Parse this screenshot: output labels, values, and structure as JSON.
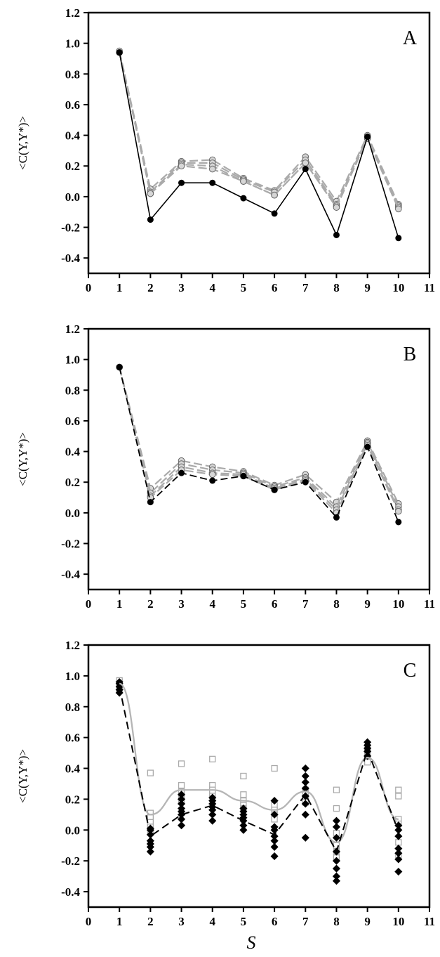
{
  "figure": {
    "xlabel": "S"
  },
  "chart_data": [
    {
      "type": "line",
      "panel_label": "A",
      "ylabel": "<C(Y,Y*)>",
      "xlim": [
        0,
        11
      ],
      "ylim": [
        -0.5,
        1.2
      ],
      "xticks": [
        "0",
        "1",
        "2",
        "3",
        "4",
        "5",
        "6",
        "7",
        "8",
        "9",
        "10",
        "11"
      ],
      "yticks": [
        "-0.4",
        "-0.2",
        "0.0",
        "0.2",
        "0.4",
        "0.6",
        "0.8",
        "1.0",
        "1.2"
      ],
      "x": [
        1,
        2,
        3,
        4,
        5,
        6,
        7,
        8,
        9,
        10
      ],
      "series": [
        {
          "style": "black-solid",
          "values": [
            0.94,
            -0.15,
            0.09,
            0.09,
            -0.01,
            -0.11,
            0.18,
            -0.25,
            0.39,
            -0.27
          ]
        },
        {
          "style": "gray-dashed",
          "values": [
            0.95,
            0.05,
            0.23,
            0.24,
            0.12,
            0.04,
            0.26,
            -0.03,
            0.4,
            -0.05
          ]
        },
        {
          "style": "gray-dashed",
          "values": [
            0.94,
            0.03,
            0.22,
            0.22,
            0.11,
            0.03,
            0.24,
            -0.05,
            0.39,
            -0.06
          ]
        },
        {
          "style": "gray-dashed",
          "values": [
            0.94,
            0.02,
            0.21,
            0.2,
            0.1,
            0.01,
            0.22,
            -0.06,
            0.38,
            -0.07
          ]
        },
        {
          "style": "gray-dashed",
          "values": [
            0.94,
            0.02,
            0.2,
            0.18,
            0.1,
            0.01,
            0.22,
            -0.07,
            0.38,
            -0.08
          ]
        }
      ]
    },
    {
      "type": "line",
      "panel_label": "B",
      "ylabel": "<C(Y,Y*)>",
      "xlim": [
        0,
        11
      ],
      "ylim": [
        -0.5,
        1.2
      ],
      "xticks": [
        "0",
        "1",
        "2",
        "3",
        "4",
        "5",
        "6",
        "7",
        "8",
        "9",
        "10",
        "11"
      ],
      "yticks": [
        "-0.4",
        "-0.2",
        "0.0",
        "0.2",
        "0.4",
        "0.6",
        "0.8",
        "1.0",
        "1.2"
      ],
      "x": [
        1,
        2,
        3,
        4,
        5,
        6,
        7,
        8,
        9,
        10
      ],
      "series": [
        {
          "style": "black-dashed",
          "values": [
            0.95,
            0.07,
            0.26,
            0.21,
            0.24,
            0.15,
            0.2,
            -0.03,
            0.43,
            -0.06
          ]
        },
        {
          "style": "gray-dashed",
          "values": [
            0.95,
            0.16,
            0.34,
            0.3,
            0.27,
            0.18,
            0.25,
            0.07,
            0.47,
            0.06
          ]
        },
        {
          "style": "gray-dashed",
          "values": [
            0.95,
            0.13,
            0.32,
            0.28,
            0.26,
            0.17,
            0.23,
            0.04,
            0.46,
            0.04
          ]
        },
        {
          "style": "gray-dashed",
          "values": [
            0.95,
            0.11,
            0.3,
            0.26,
            0.25,
            0.16,
            0.22,
            0.02,
            0.45,
            0.02
          ]
        },
        {
          "style": "gray-dashed",
          "values": [
            0.95,
            0.1,
            0.28,
            0.25,
            0.24,
            0.15,
            0.21,
            0.0,
            0.44,
            0.01
          ]
        }
      ]
    },
    {
      "type": "scatter",
      "panel_label": "C",
      "ylabel": "<C(Y,Y*)>",
      "xlim": [
        0,
        11
      ],
      "ylim": [
        -0.5,
        1.2
      ],
      "xticks": [
        "0",
        "1",
        "2",
        "3",
        "4",
        "5",
        "6",
        "7",
        "8",
        "9",
        "10",
        "11"
      ],
      "yticks": [
        "-0.4",
        "-0.2",
        "0.0",
        "0.2",
        "0.4",
        "0.6",
        "0.8",
        "1.0",
        "1.2"
      ],
      "x": [
        1,
        2,
        3,
        4,
        5,
        6,
        7,
        8,
        9,
        10
      ],
      "mean_black_dashed": [
        0.93,
        -0.04,
        0.1,
        0.16,
        0.06,
        -0.03,
        0.23,
        -0.14,
        0.52,
        -0.01
      ],
      "mean_gray_solid": [
        0.95,
        0.1,
        0.26,
        0.26,
        0.19,
        0.13,
        0.25,
        -0.08,
        0.47,
        0.07
      ],
      "black_diamonds": [
        [
          0.89,
          0.91,
          0.93,
          0.95,
          0.96
        ],
        [
          -0.14,
          -0.11,
          -0.09,
          -0.07,
          -0.03,
          0.0,
          0.01
        ],
        [
          0.03,
          0.07,
          0.1,
          0.12,
          0.14,
          0.17,
          0.2,
          0.23
        ],
        [
          0.06,
          0.1,
          0.13,
          0.15,
          0.17,
          0.19,
          0.21
        ],
        [
          0.0,
          0.03,
          0.06,
          0.08,
          0.1,
          0.12,
          0.14
        ],
        [
          -0.17,
          -0.11,
          -0.07,
          -0.04,
          0.0,
          0.02,
          0.1,
          0.19
        ],
        [
          -0.05,
          0.1,
          0.17,
          0.22,
          0.27,
          0.31,
          0.35,
          0.4
        ],
        [
          -0.33,
          -0.3,
          -0.25,
          -0.2,
          -0.14,
          -0.05,
          0.02,
          0.06
        ],
        [
          0.48,
          0.51,
          0.53,
          0.55,
          0.57
        ],
        [
          -0.27,
          -0.19,
          -0.15,
          -0.12,
          -0.04,
          0.0,
          0.03
        ]
      ],
      "gray_squares": [
        [
          0.91,
          0.93,
          0.94,
          0.96,
          0.97
        ],
        [
          0.37,
          0.11,
          0.08,
          0.05,
          0.02,
          0.0
        ],
        [
          0.43,
          0.29,
          0.25,
          0.22,
          0.19
        ],
        [
          0.46,
          0.29,
          0.26,
          0.24,
          0.22
        ],
        [
          0.35,
          0.23,
          0.19,
          0.16,
          0.14
        ],
        [
          0.4,
          0.16,
          0.13,
          0.1,
          0.07
        ],
        [
          0.26,
          0.24,
          0.21,
          0.18
        ],
        [
          0.26,
          0.14,
          -0.02,
          -0.1,
          -0.14,
          -0.18
        ],
        [
          0.52,
          0.48,
          0.46,
          0.44
        ],
        [
          0.26,
          0.22,
          0.07,
          0.04,
          -0.08,
          -0.17
        ]
      ]
    }
  ]
}
